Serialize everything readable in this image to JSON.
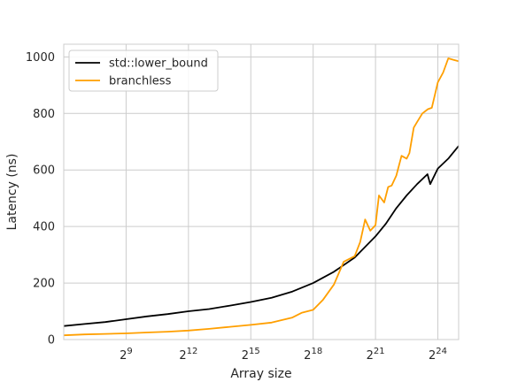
{
  "chart_data": {
    "type": "line",
    "xlabel": "Array size",
    "ylabel": "Latency (ns)",
    "x_scale": "log2",
    "xlim": [
      64,
      33554432
    ],
    "ylim": [
      0,
      1045
    ],
    "xticks": [
      {
        "value": 512,
        "base": "2",
        "exp": "9"
      },
      {
        "value": 4096,
        "base": "2",
        "exp": "12"
      },
      {
        "value": 32768,
        "base": "2",
        "exp": "15"
      },
      {
        "value": 262144,
        "base": "2",
        "exp": "18"
      },
      {
        "value": 2097152,
        "base": "2",
        "exp": "21"
      },
      {
        "value": 16777216,
        "base": "2",
        "exp": "24"
      }
    ],
    "yticks": [
      0,
      200,
      400,
      600,
      800,
      1000
    ],
    "grid": true,
    "legend_position": "top-left",
    "series": [
      {
        "name": "std::lower_bound",
        "color": "#000000",
        "x": [
          64,
          128,
          256,
          512,
          1024,
          2048,
          4096,
          8192,
          16384,
          32768,
          65536,
          131072,
          262144,
          524288,
          1048576,
          2097152,
          2965820,
          4194304,
          5931642,
          8388608,
          11863283,
          13000000,
          16777216,
          23726566,
          33554432
        ],
        "y": [
          48,
          55,
          62,
          72,
          82,
          90,
          100,
          108,
          120,
          133,
          148,
          170,
          200,
          240,
          290,
          365,
          410,
          465,
          510,
          550,
          585,
          550,
          605,
          640,
          685
        ]
      },
      {
        "name": "branchless",
        "color": "#ff9f00",
        "x": [
          64,
          128,
          256,
          512,
          1024,
          2048,
          4096,
          8192,
          16384,
          32768,
          65536,
          131072,
          181019,
          262144,
          362039,
          524288,
          724077,
          1048576,
          1258291,
          1482910,
          1763000,
          2097152,
          2350000,
          2800000,
          3200000,
          3600000,
          4194304,
          5000000,
          5931642,
          6500000,
          7500000,
          8388608,
          10000000,
          12000000,
          13700000,
          16777216,
          20000000,
          23726566,
          28000000,
          33554432
        ],
        "y": [
          15,
          18,
          20,
          22,
          25,
          28,
          32,
          38,
          45,
          52,
          60,
          78,
          95,
          105,
          140,
          195,
          275,
          295,
          345,
          425,
          385,
          405,
          510,
          485,
          540,
          545,
          580,
          650,
          640,
          660,
          750,
          770,
          800,
          815,
          820,
          910,
          945,
          995,
          990,
          985
        ]
      }
    ]
  }
}
